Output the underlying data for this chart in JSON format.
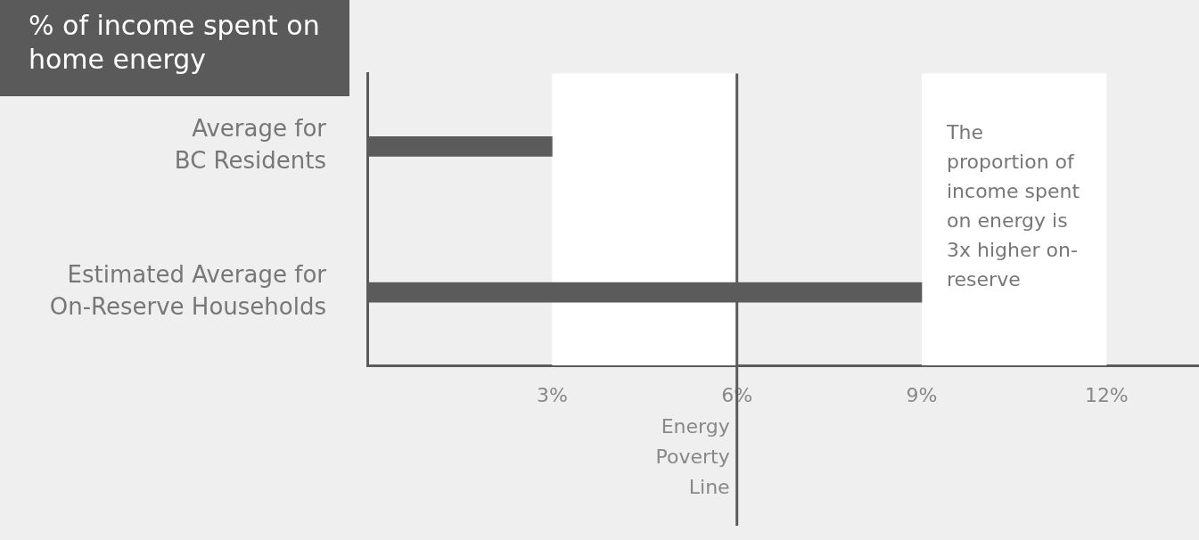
{
  "chart_data": {
    "type": "bar",
    "orientation": "horizontal",
    "title": "% of income spent on home energy",
    "categories": [
      "Average for\nBC Residents",
      "Estimated Average for\nOn-Reserve Households"
    ],
    "values": [
      3,
      9
    ],
    "color": "#5b5b5b",
    "xlim": [
      0,
      13.5
    ],
    "xticks": [
      {
        "value": 3,
        "label": "3%"
      },
      {
        "value": 6,
        "label": "6%"
      },
      {
        "value": 9,
        "label": "9%"
      },
      {
        "value": 12,
        "label": "12%"
      }
    ],
    "grid": false,
    "legend": false,
    "ref_lines": [
      {
        "axis": "x",
        "value": 6,
        "label": "Energy\nPoverty\nLine",
        "color": "#5b5b5b"
      }
    ],
    "bands": [
      {
        "axis": "x",
        "from": 3,
        "to": 6,
        "color": "#ffffff"
      },
      {
        "axis": "x",
        "from": 9,
        "to": 12,
        "color": "#ffffff"
      }
    ],
    "annotations": [
      "The proportion of income spent on energy is 3x higher on-reserve"
    ]
  }
}
